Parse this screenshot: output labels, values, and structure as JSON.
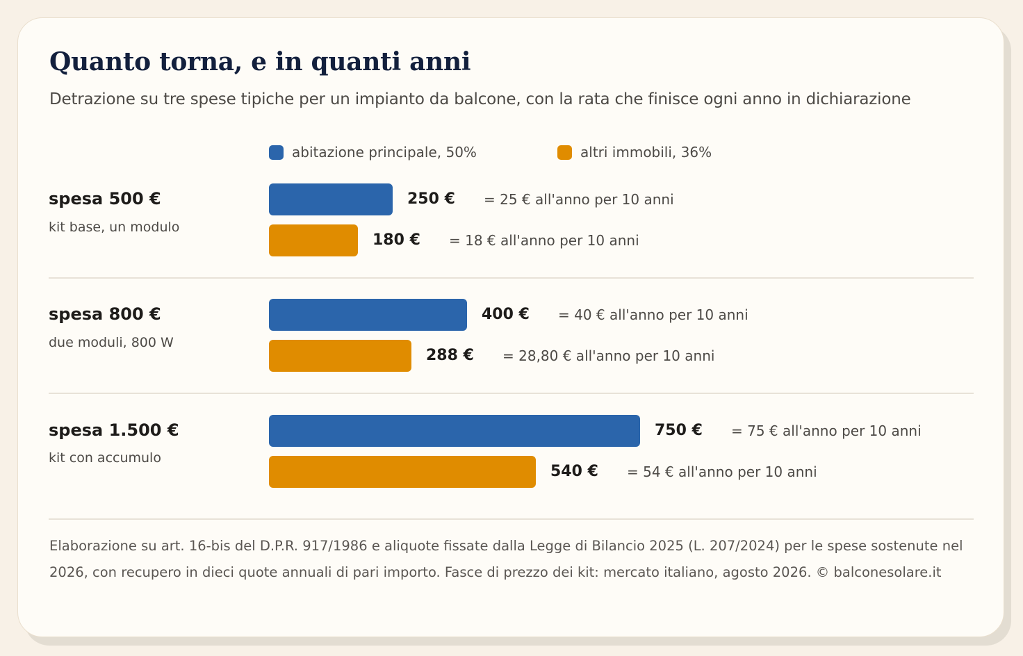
{
  "title": "Quanto torna, e in quanti anni",
  "subtitle": "Detrazione su tre spese tipiche per un impianto da balcone, con la rata che finisce ogni anno in dichiarazione",
  "colors": {
    "principale": "#2b65ab",
    "altri": "#e08c00"
  },
  "legend": [
    {
      "label": "abitazione principale, 50%",
      "color": "#2b65ab"
    },
    {
      "label": "altri immobili, 36%",
      "color": "#e08c00"
    }
  ],
  "chart_data": {
    "type": "bar",
    "orientation": "horizontal",
    "categories": [
      "spesa 500 €",
      "spesa 800 €",
      "spesa 1.500 €"
    ],
    "category_subtitles": [
      "kit base, un modulo",
      "due moduli, 800 W",
      "kit con accumulo"
    ],
    "series": [
      {
        "name": "abitazione principale, 50%",
        "values": [
          250,
          400,
          750
        ],
        "value_labels": [
          "250 €",
          "400 €",
          "750 €"
        ],
        "notes": [
          "= 25 € all'anno per 10 anni",
          "= 40 € all'anno per 10 anni",
          "= 75 € all'anno per 10 anni"
        ]
      },
      {
        "name": "altri immobili, 36%",
        "values": [
          180,
          288,
          540
        ],
        "value_labels": [
          "180 €",
          "288 €",
          "540 €"
        ],
        "notes": [
          "= 18 € all'anno per 10 anni",
          "= 28,80 € all'anno per 10 anni",
          "= 54 € all'anno per 10 anni"
        ]
      }
    ],
    "xlim": [
      0,
      750
    ],
    "grid": false,
    "legend_position": "top"
  },
  "footer": "Elaborazione su art. 16-bis del D.P.R. 917/1986 e aliquote fissate dalla Legge di Bilancio 2025 (L. 207/2024) per le spese sostenute nel 2026, con recupero in dieci quote annuali di pari importo. Fasce di prezzo dei kit: mercato italiano, agosto 2026. © balconesolare.it"
}
